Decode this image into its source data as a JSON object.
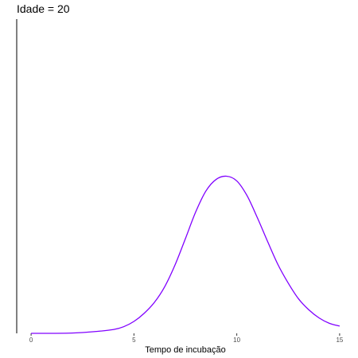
{
  "chart_data": {
    "type": "line",
    "title": "Idade = 20",
    "xlabel": "Tempo de incubação",
    "ylabel": "",
    "xlim": [
      -0.7,
      15.7
    ],
    "ylim": [
      0,
      1
    ],
    "x_ticks": [
      0,
      5,
      10,
      15
    ],
    "x_tick_labels": [
      "0",
      "5",
      "10",
      "15"
    ],
    "grid": false,
    "legend": "none",
    "series": [
      {
        "color": "#8000FF",
        "x": [
          0,
          1,
          2,
          3,
          4,
          4.5,
          5,
          5.5,
          6,
          6.5,
          7,
          7.5,
          8,
          8.5,
          9,
          9.5,
          10,
          10.5,
          11,
          11.5,
          12,
          12.5,
          13,
          13.5,
          14,
          14.5,
          15
        ],
        "values": [
          0.0,
          0.0,
          0.001,
          0.005,
          0.012,
          0.021,
          0.038,
          0.064,
          0.099,
          0.149,
          0.218,
          0.301,
          0.386,
          0.453,
          0.49,
          0.5,
          0.485,
          0.438,
          0.368,
          0.292,
          0.219,
          0.16,
          0.11,
          0.075,
          0.049,
          0.032,
          0.023
        ]
      }
    ]
  }
}
